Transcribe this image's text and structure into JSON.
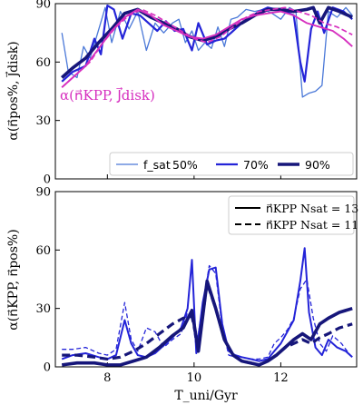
{
  "chart_data": [
    {
      "type": "line",
      "panel": "top",
      "ylabel": "α(n⃗pos%, J⃗disk)",
      "annotation": {
        "text": "α(n⃗KPP, J⃗disk)",
        "color": "#d62fbf"
      },
      "xlim": [
        6.8,
        13.75
      ],
      "ylim": [
        0,
        90
      ],
      "xticks": [
        8,
        10,
        12
      ],
      "yticks": [
        0,
        30,
        60,
        90
      ],
      "legend": {
        "placement": "lower-right",
        "prefix": "f_sat",
        "entries": [
          "50%",
          "70%",
          "90%"
        ]
      },
      "series": [
        {
          "name": "50%",
          "color": "#4a78d8",
          "width": 1.3,
          "dash": "",
          "x": [
            6.95,
            7.1,
            7.3,
            7.45,
            7.6,
            7.75,
            7.95,
            8.1,
            8.3,
            8.5,
            8.7,
            8.9,
            9.1,
            9.3,
            9.5,
            9.65,
            9.8,
            9.95,
            10.1,
            10.25,
            10.4,
            10.55,
            10.7,
            10.85,
            11.0,
            11.2,
            11.4,
            11.6,
            11.8,
            12.0,
            12.2,
            12.35,
            12.5,
            12.65,
            12.8,
            12.95,
            13.1,
            13.3,
            13.5,
            13.65
          ],
          "y": [
            75,
            55,
            52,
            68,
            62,
            73,
            88,
            70,
            86,
            77,
            86,
            66,
            80,
            75,
            80,
            82,
            70,
            76,
            66,
            70,
            67,
            78,
            68,
            82,
            83,
            87,
            86,
            87,
            85,
            82,
            88,
            86,
            42,
            44,
            45,
            48,
            86,
            83,
            88,
            84
          ]
        },
        {
          "name": "70%",
          "color": "#2424d8",
          "width": 2.2,
          "dash": "",
          "x": [
            6.95,
            7.2,
            7.5,
            7.7,
            7.85,
            8.0,
            8.15,
            8.35,
            8.55,
            8.75,
            8.95,
            9.15,
            9.35,
            9.55,
            9.75,
            9.95,
            10.1,
            10.3,
            10.5,
            10.7,
            10.9,
            11.1,
            11.3,
            11.5,
            11.7,
            11.9,
            12.1,
            12.3,
            12.45,
            12.55,
            12.7,
            12.85,
            13.0,
            13.2,
            13.45,
            13.65
          ],
          "y": [
            50,
            55,
            58,
            72,
            64,
            89,
            87,
            72,
            85,
            84,
            80,
            76,
            81,
            76,
            77,
            66,
            80,
            69,
            71,
            72,
            76,
            80,
            83,
            86,
            88,
            87,
            86,
            84,
            60,
            50,
            77,
            86,
            75,
            88,
            86,
            82
          ]
        },
        {
          "name": "90%",
          "color": "#16167a",
          "width": 3.6,
          "dash": "",
          "x": [
            6.95,
            7.2,
            7.5,
            7.8,
            8.1,
            8.4,
            8.7,
            9.0,
            9.3,
            9.6,
            9.9,
            10.2,
            10.5,
            10.8,
            11.1,
            11.4,
            11.7,
            12.0,
            12.3,
            12.6,
            12.75,
            12.9,
            13.1,
            13.35,
            13.65
          ],
          "y": [
            52,
            57,
            62,
            70,
            77,
            85,
            87,
            83,
            80,
            77,
            73,
            71,
            73,
            77,
            80,
            84,
            87,
            87,
            86,
            87,
            88,
            80,
            88,
            86,
            83
          ]
        },
        {
          "name": "KPP",
          "color": "#d62fbf",
          "width": 1.9,
          "dash": "",
          "x": [
            6.95,
            7.2,
            7.5,
            7.8,
            8.1,
            8.4,
            8.7,
            9.0,
            9.3,
            9.6,
            9.9,
            10.2,
            10.5,
            10.8,
            11.1,
            11.4,
            11.7,
            12.0,
            12.3,
            12.6,
            12.9,
            13.2,
            13.45,
            13.65
          ],
          "y": [
            47,
            52,
            58,
            67,
            76,
            83,
            87,
            84,
            79,
            76,
            73,
            72,
            74,
            78,
            82,
            84,
            85,
            86,
            84,
            80,
            78,
            76,
            72,
            68
          ]
        },
        {
          "name": "KPP-dashed",
          "color": "#d62fbf",
          "width": 1.7,
          "dash": "6,3",
          "x": [
            6.95,
            7.3,
            7.6,
            7.9,
            8.2,
            8.5,
            8.8,
            9.1,
            9.4,
            9.7,
            10.0,
            10.3,
            10.6,
            10.9,
            11.2,
            11.5,
            11.8,
            12.1,
            12.4,
            12.7,
            13.0,
            13.3,
            13.65
          ],
          "y": [
            47,
            54,
            60,
            70,
            78,
            84,
            87,
            84,
            80,
            76,
            72,
            70,
            73,
            78,
            83,
            86,
            87,
            88,
            86,
            84,
            80,
            78,
            74
          ]
        }
      ]
    },
    {
      "type": "line",
      "panel": "bottom",
      "xlabel": "T_uni/Gyr",
      "ylabel": "α(n⃗KPP, n⃗pos%)",
      "xlim": [
        6.8,
        13.75
      ],
      "ylim": [
        0,
        90
      ],
      "xticks": [
        8,
        10,
        12
      ],
      "yticks": [
        0,
        30,
        60,
        90
      ],
      "legend": {
        "placement": "top-right",
        "entries": [
          {
            "label": "n⃗KPP Nsat = 13",
            "style": "solid"
          },
          {
            "label": "n⃗KPP Nsat = 11",
            "style": "dashed"
          }
        ]
      },
      "series": [
        {
          "name": "70% (Nsat=13)",
          "color": "#2424d8",
          "width": 2.0,
          "dash": "",
          "x": [
            6.95,
            7.2,
            7.5,
            7.8,
            8.0,
            8.2,
            8.4,
            8.55,
            8.7,
            8.9,
            9.1,
            9.3,
            9.5,
            9.7,
            9.85,
            9.95,
            10.05,
            10.2,
            10.35,
            10.5,
            10.65,
            10.8,
            10.95,
            11.1,
            11.3,
            11.5,
            11.7,
            11.85,
            12.0,
            12.15,
            12.3,
            12.45,
            12.55,
            12.65,
            12.8,
            12.95,
            13.1,
            13.3,
            13.5,
            13.65
          ],
          "y": [
            4,
            6,
            7,
            5,
            4,
            6,
            24,
            12,
            6,
            5,
            7,
            11,
            15,
            20,
            30,
            55,
            7,
            33,
            50,
            51,
            22,
            8,
            6,
            5,
            4,
            3,
            4,
            8,
            12,
            18,
            24,
            44,
            61,
            28,
            10,
            6,
            14,
            10,
            8,
            5
          ]
        },
        {
          "name": "70% (Nsat=11)",
          "color": "#2424d8",
          "width": 1.3,
          "dash": "5,3",
          "x": [
            6.95,
            7.2,
            7.5,
            7.8,
            8.0,
            8.2,
            8.4,
            8.55,
            8.7,
            8.9,
            9.1,
            9.3,
            9.5,
            9.7,
            9.85,
            9.95,
            10.05,
            10.2,
            10.35,
            10.5,
            10.65,
            10.8,
            10.95,
            11.1,
            11.3,
            11.5,
            11.7,
            11.85,
            12.0,
            12.15,
            12.3,
            12.45,
            12.6,
            12.75,
            12.9,
            13.05,
            13.2,
            13.4,
            13.6
          ],
          "y": [
            9,
            9,
            10,
            7,
            6,
            9,
            33,
            14,
            8,
            20,
            18,
            10,
            14,
            17,
            28,
            26,
            10,
            32,
            52,
            48,
            20,
            6,
            5,
            5,
            4,
            4,
            5,
            12,
            15,
            19,
            25,
            40,
            45,
            25,
            12,
            8,
            16,
            12,
            6
          ]
        },
        {
          "name": "90% (Nsat=13)",
          "color": "#16167a",
          "width": 3.6,
          "dash": "",
          "x": [
            6.95,
            7.3,
            7.7,
            8.0,
            8.3,
            8.6,
            8.9,
            9.2,
            9.5,
            9.75,
            9.95,
            10.1,
            10.3,
            10.5,
            10.7,
            10.9,
            11.1,
            11.3,
            11.5,
            11.7,
            11.9,
            12.1,
            12.3,
            12.5,
            12.7,
            12.9,
            13.1,
            13.35,
            13.65
          ],
          "y": [
            1,
            2,
            2,
            1,
            1,
            3,
            5,
            10,
            16,
            20,
            29,
            8,
            44,
            30,
            14,
            6,
            3,
            2,
            1,
            3,
            6,
            10,
            14,
            17,
            14,
            22,
            25,
            28,
            30
          ]
        },
        {
          "name": "90% (Nsat=11)",
          "color": "#16167a",
          "width": 3.2,
          "dash": "9,5",
          "x": [
            6.95,
            7.3,
            7.7,
            8.0,
            8.3,
            8.6,
            8.9,
            9.2,
            9.5,
            9.75,
            9.95,
            10.1,
            10.3,
            10.5,
            10.7,
            10.9,
            11.1,
            11.3,
            11.5,
            11.7,
            11.9,
            12.1,
            12.3,
            12.5,
            12.7,
            12.9,
            13.1,
            13.35,
            13.65
          ],
          "y": [
            6,
            6,
            5,
            4,
            5,
            8,
            12,
            17,
            22,
            25,
            26,
            10,
            43,
            30,
            14,
            6,
            3,
            2,
            1,
            3,
            6,
            10,
            12,
            14,
            12,
            15,
            17,
            20,
            22
          ]
        }
      ]
    }
  ]
}
